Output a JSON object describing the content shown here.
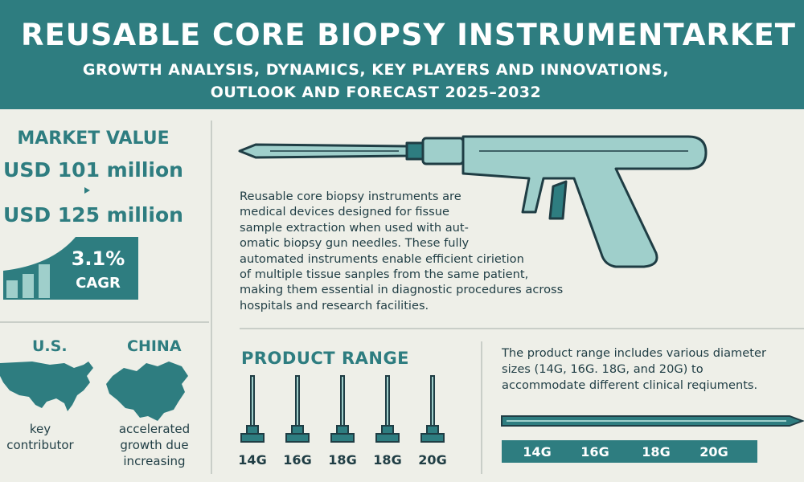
{
  "header": {
    "title": "REUSABLE CORE BIOPSY INSTRUMENTARKET",
    "subtitle_line1": "GROWTH ANALYSIS, DYNAMICS, KEY PLAYERS AND INNOVATIONS,",
    "subtitle_line2": "OUTLOOK AND FORECAST 2025–2032"
  },
  "market": {
    "label": "MARKET VALUE",
    "value_start": "USD 101 million",
    "value_end": "USD 125 million",
    "cagr_value": "3.1%",
    "cagr_label": "CAGR"
  },
  "regions": [
    {
      "name": "U.S.",
      "note_lines": [
        "key",
        "contributor"
      ]
    },
    {
      "name": "CHINA",
      "note_lines": [
        "accelerated",
        "growth due",
        "increasing"
      ]
    }
  ],
  "description": {
    "lines": [
      "Reusable core biopsy instruments are",
      "medical devices designed for fissue",
      "sample extraction when used with aut-",
      "omatic biopsy gun needles. These fully",
      "automated instruments enable efficient ciriet​ion",
      "of multiple tissue sanples from the same patient,",
      "making them essential in diagnostic procedures across",
      "hospitals and research facilities."
    ]
  },
  "product_range": {
    "title": "PRODUCT RANGE",
    "needle_labels": [
      "14G",
      "16G",
      "18G",
      "18G",
      "20G"
    ],
    "description_lines": [
      "The product range includes various diameter",
      "sizes (14G, 16G. 18G, and 20G) to",
      "accommodate different clinical reqiuments."
    ],
    "bar_labels": [
      "14G",
      "16G",
      "18G",
      "20G"
    ]
  },
  "colors": {
    "teal": "#2e7d80",
    "light_teal": "#9fcfcb",
    "background": "#eeefe8",
    "text": "#1f3d44"
  },
  "icons": [
    "biopsy-gun-icon",
    "us-map-icon",
    "china-map-icon",
    "needle-icon",
    "growth-bars-icon"
  ]
}
